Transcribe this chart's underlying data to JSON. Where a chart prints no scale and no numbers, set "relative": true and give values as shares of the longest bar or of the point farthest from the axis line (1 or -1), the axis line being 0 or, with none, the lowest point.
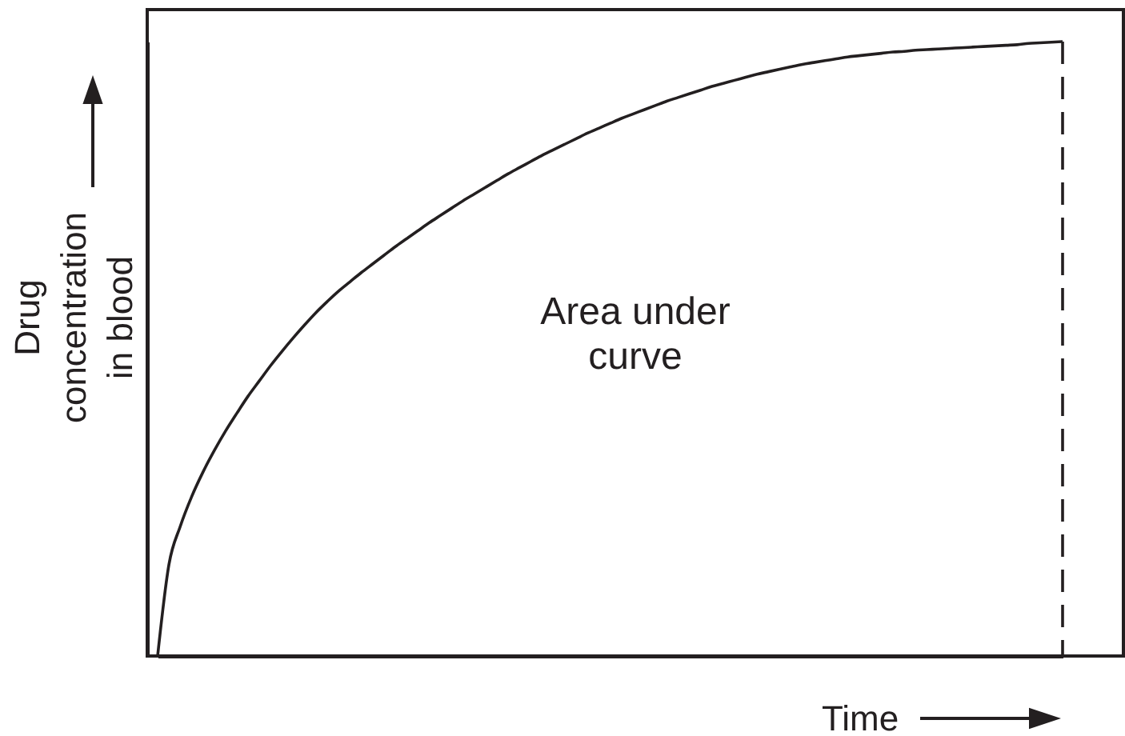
{
  "chart_data": {
    "type": "line",
    "relative": true,
    "tick_labels": false,
    "xlabel": "Time",
    "ylabel": "Drug concentration in blood",
    "annotations": [
      "Area under curve"
    ],
    "categories": [
      null,
      null,
      null,
      null,
      null,
      null,
      null,
      null,
      null,
      null,
      null,
      null,
      null,
      null,
      null,
      null,
      null,
      null,
      null,
      null,
      null,
      null,
      null,
      null,
      null,
      null,
      null,
      null,
      null,
      null,
      null,
      null,
      null,
      null,
      null,
      null,
      null,
      null,
      null,
      null,
      null,
      null,
      null,
      null,
      null,
      null,
      null,
      null,
      null,
      null,
      null,
      null,
      null,
      null,
      null,
      null,
      null,
      null,
      null,
      null,
      null,
      null,
      null,
      null,
      null,
      null,
      null,
      null,
      null,
      null,
      null,
      null,
      null,
      null,
      null,
      null,
      null,
      null,
      null,
      null,
      null
    ],
    "values": [
      0.0,
      0.149,
      0.211,
      0.259,
      0.299,
      0.334,
      0.366,
      0.395,
      0.423,
      0.448,
      0.473,
      0.496,
      0.518,
      0.539,
      0.559,
      0.577,
      0.594,
      0.609,
      0.624,
      0.638,
      0.652,
      0.666,
      0.679,
      0.692,
      0.705,
      0.717,
      0.729,
      0.741,
      0.752,
      0.763,
      0.774,
      0.785,
      0.795,
      0.805,
      0.815,
      0.824,
      0.833,
      0.842,
      0.851,
      0.859,
      0.867,
      0.875,
      0.882,
      0.889,
      0.896,
      0.903,
      0.909,
      0.915,
      0.921,
      0.927,
      0.932,
      0.937,
      0.942,
      0.947,
      0.951,
      0.955,
      0.959,
      0.963,
      0.966,
      0.969,
      0.972,
      0.975,
      0.977,
      0.979,
      0.981,
      0.983,
      0.984,
      0.986,
      0.987,
      0.988,
      0.989,
      0.99,
      0.991,
      0.992,
      0.993,
      0.994,
      0.995,
      0.997,
      0.998,
      0.999,
      1.0
    ],
    "color": "#231f20"
  }
}
